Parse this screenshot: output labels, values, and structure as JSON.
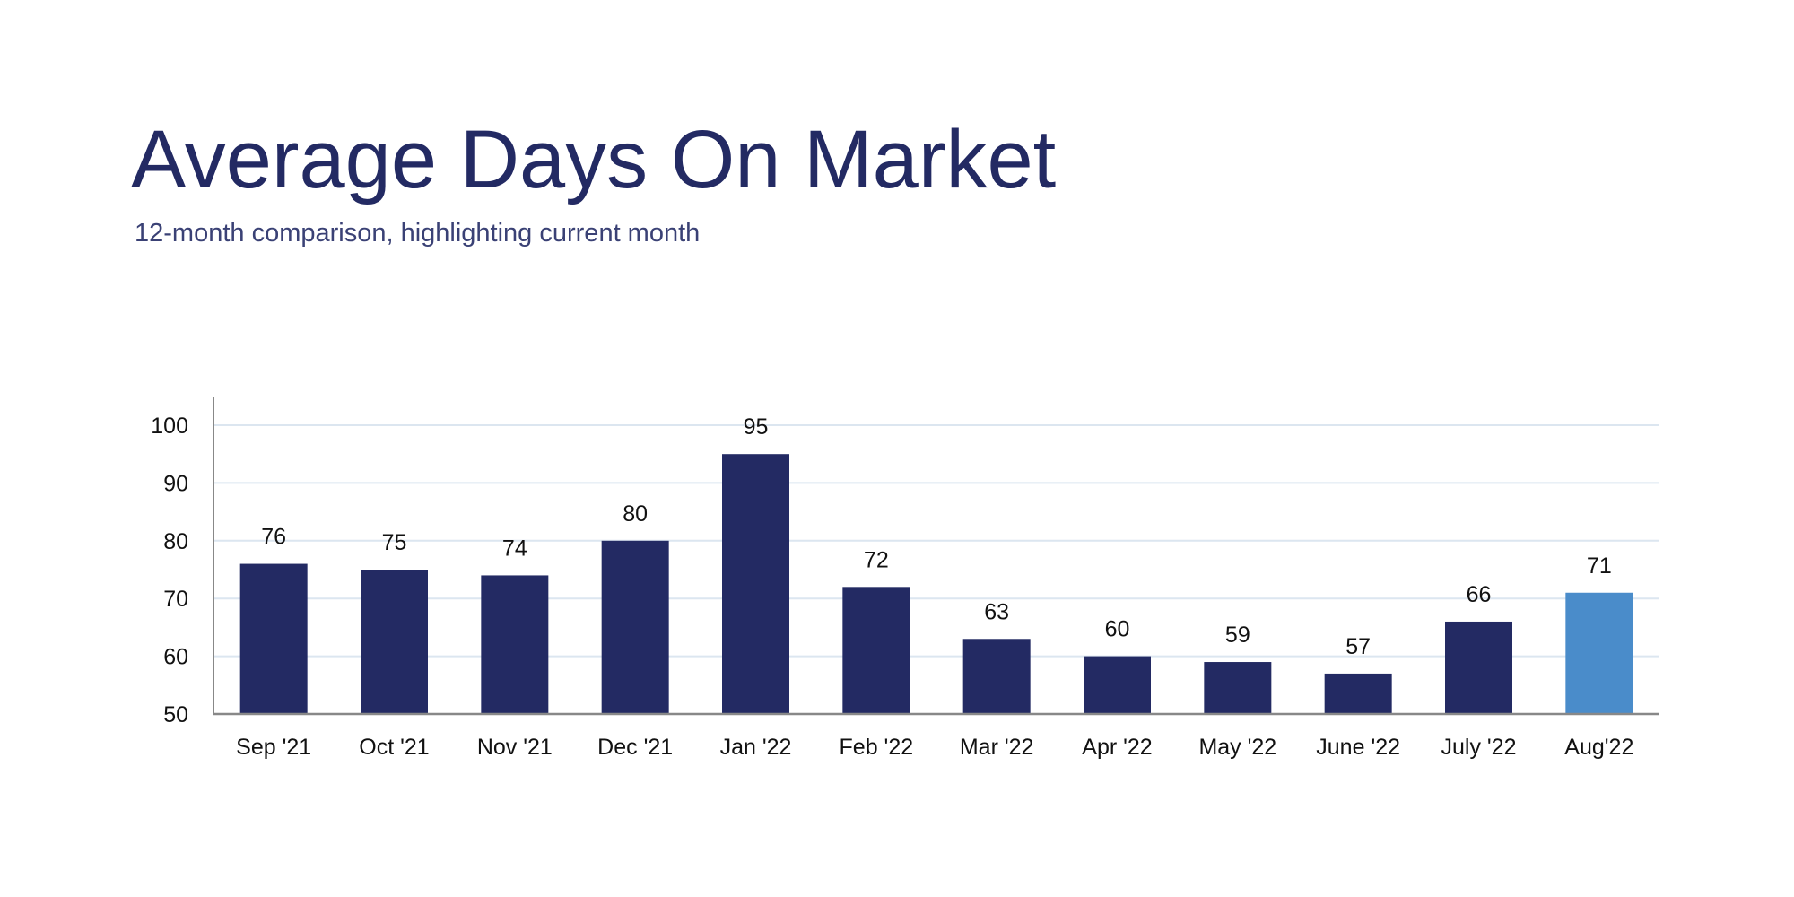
{
  "title": "Average Days On Market",
  "subtitle": "12-month comparison, highlighting current month",
  "colors": {
    "bar": "#232a63",
    "highlight": "#4a8cca",
    "grid": "#dce6f0",
    "axis": "#888888",
    "title": "#232a63"
  },
  "chart_data": {
    "type": "bar",
    "title": "Average Days On Market",
    "subtitle": "12-month comparison, highlighting current month",
    "categories": [
      "Sep '21",
      "Oct '21",
      "Nov '21",
      "Dec '21",
      "Jan '22",
      "Feb '22",
      "Mar '22",
      "Apr '22",
      "May '22",
      "June '22",
      "July '22",
      "Aug'22"
    ],
    "values": [
      76,
      75,
      74,
      80,
      95,
      72,
      63,
      60,
      59,
      57,
      66,
      71
    ],
    "highlight_index": 11,
    "xlabel": "",
    "ylabel": "",
    "ylim": [
      50,
      105
    ],
    "yticks": [
      50,
      60,
      70,
      80,
      90,
      100
    ],
    "grid": true,
    "data_labels": true
  }
}
